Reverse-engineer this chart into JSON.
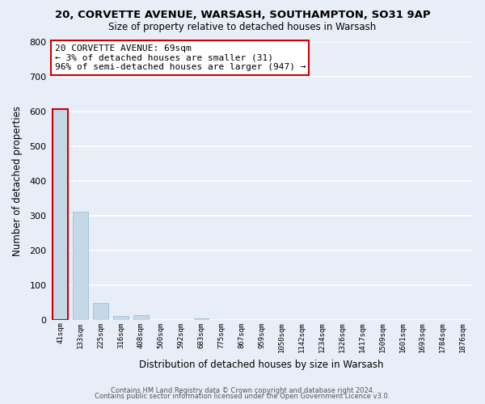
{
  "title_line1": "20, CORVETTE AVENUE, WARSASH, SOUTHAMPTON, SO31 9AP",
  "title_line2": "Size of property relative to detached houses in Warsash",
  "xlabel": "Distribution of detached houses by size in Warsash",
  "ylabel": "Number of detached properties",
  "bar_labels": [
    "41sqm",
    "133sqm",
    "225sqm",
    "316sqm",
    "408sqm",
    "500sqm",
    "592sqm",
    "683sqm",
    "775sqm",
    "867sqm",
    "959sqm",
    "1050sqm",
    "1142sqm",
    "1234sqm",
    "1326sqm",
    "1417sqm",
    "1509sqm",
    "1601sqm",
    "1693sqm",
    "1784sqm",
    "1876sqm"
  ],
  "bar_heights": [
    607,
    310,
    48,
    12,
    14,
    0,
    0,
    3,
    0,
    0,
    0,
    0,
    0,
    0,
    0,
    0,
    0,
    0,
    0,
    0,
    0
  ],
  "bar_color": "#c5d8e8",
  "bar_edge_color": "#a8c4d8",
  "highlight_bar_index": 0,
  "highlight_bar_edge_color": "#cc0000",
  "ylim": [
    0,
    800
  ],
  "yticks": [
    0,
    100,
    200,
    300,
    400,
    500,
    600,
    700,
    800
  ],
  "annotation_title": "20 CORVETTE AVENUE: 69sqm",
  "annotation_line1": "← 3% of detached houses are smaller (31)",
  "annotation_line2": "96% of semi-detached houses are larger (947) →",
  "annotation_box_color": "#ffffff",
  "annotation_box_edge_color": "#cc0000",
  "footer_line1": "Contains HM Land Registry data © Crown copyright and database right 2024.",
  "footer_line2": "Contains public sector information licensed under the Open Government Licence v3.0.",
  "bg_color": "#e8eef8",
  "grid_color": "#ffffff"
}
